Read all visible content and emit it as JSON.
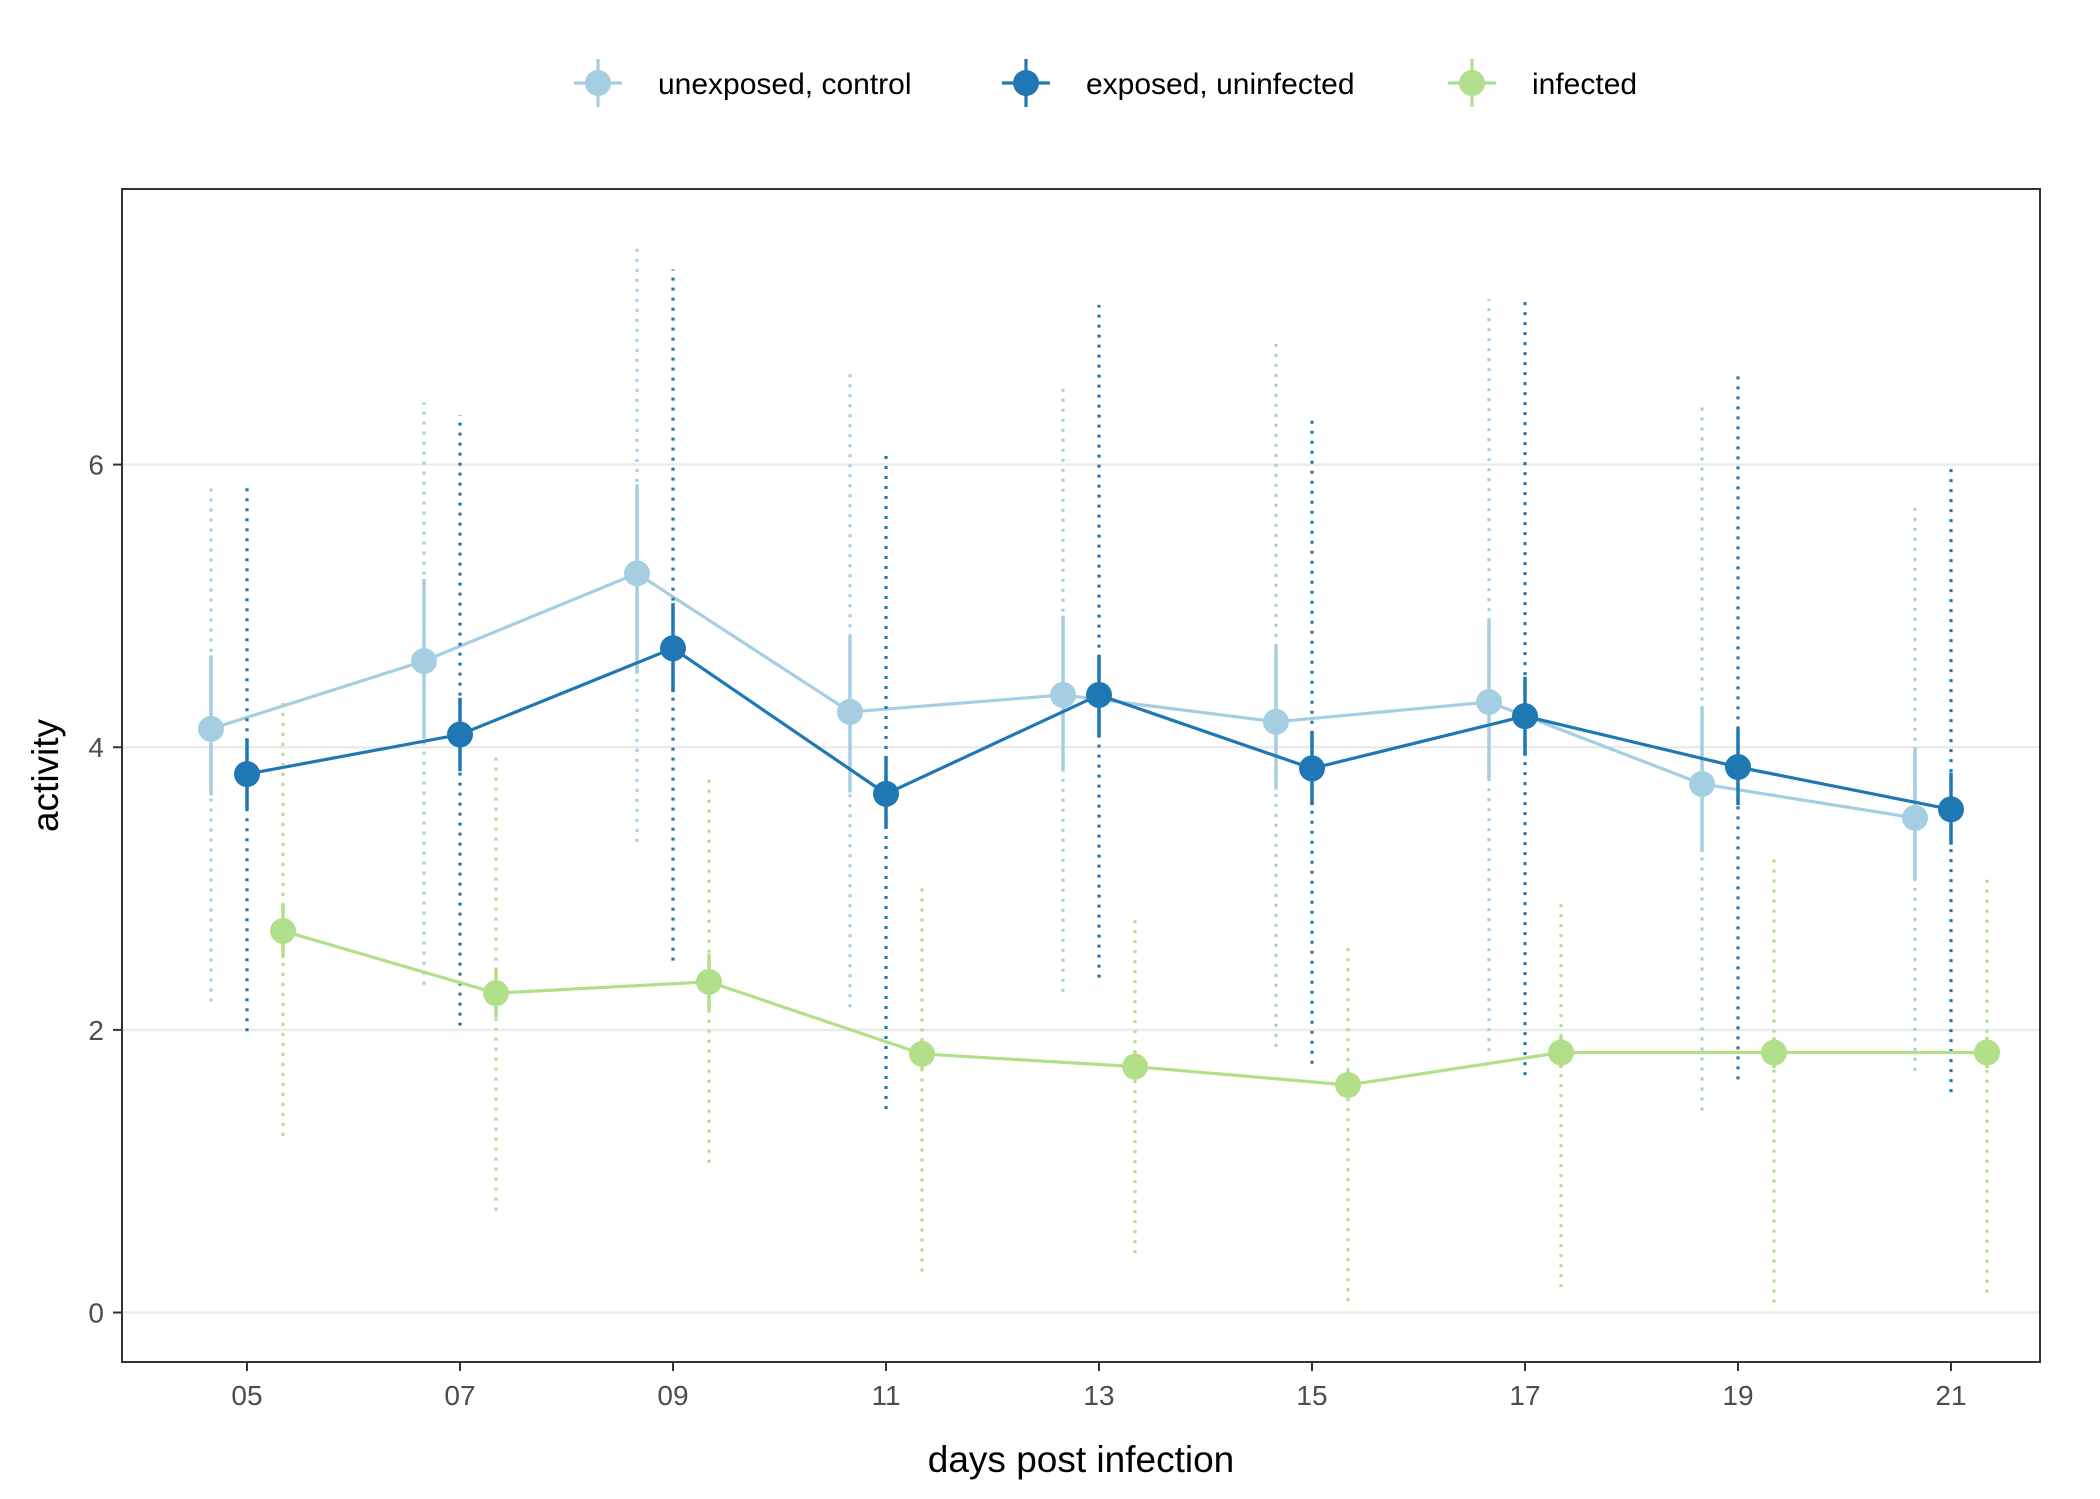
{
  "chart_data": {
    "type": "line",
    "xlabel": "days post infection",
    "ylabel": "activity",
    "categories": [
      "05",
      "07",
      "09",
      "11",
      "13",
      "15",
      "17",
      "19",
      "21"
    ],
    "ylim": [
      -0.35,
      7.95
    ],
    "yticks": [
      0,
      2,
      4,
      6
    ],
    "grid": "horizontal",
    "legend_position": "top",
    "error_bars": "solid = inner interval, dotted = outer interval",
    "series": [
      {
        "name": "unexposed, control",
        "color": "#a6cee3",
        "values": [
          4.13,
          4.61,
          5.23,
          4.25,
          4.37,
          4.18,
          4.32,
          3.74,
          3.5
        ],
        "inner_low": [
          3.66,
          4.06,
          4.52,
          3.68,
          3.84,
          3.7,
          3.78,
          3.26,
          3.06
        ],
        "inner_high": [
          4.65,
          5.19,
          5.86,
          4.79,
          4.93,
          4.72,
          4.9,
          4.29,
          4.0
        ],
        "outer_low": [
          2.2,
          2.32,
          3.33,
          2.16,
          2.27,
          1.88,
          1.85,
          1.43,
          1.71
        ],
        "outer_high": [
          5.85,
          6.44,
          7.54,
          6.66,
          6.58,
          6.87,
          7.17,
          6.44,
          5.7
        ]
      },
      {
        "name": "exposed, uninfected",
        "color": "#1f78b4",
        "values": [
          3.81,
          4.09,
          4.7,
          3.67,
          4.37,
          3.85,
          4.22,
          3.86,
          3.56
        ],
        "inner_low": [
          3.56,
          3.83,
          4.39,
          3.43,
          4.07,
          3.59,
          3.94,
          3.59,
          3.31
        ],
        "inner_high": [
          4.06,
          4.35,
          5.02,
          3.93,
          4.65,
          4.11,
          4.5,
          4.13,
          3.82
        ],
        "outer_low": [
          1.99,
          2.03,
          2.49,
          1.44,
          2.37,
          1.76,
          1.68,
          1.65,
          1.56
        ],
        "outer_high": [
          5.84,
          6.35,
          7.38,
          6.11,
          7.13,
          6.31,
          7.15,
          6.65,
          6.01
        ]
      },
      {
        "name": "infected",
        "color": "#b2df8a",
        "values": [
          2.7,
          2.26,
          2.34,
          1.83,
          1.74,
          1.61,
          1.84,
          1.84,
          1.84
        ],
        "inner_low": [
          2.51,
          2.09,
          2.14,
          1.72,
          1.64,
          1.52,
          1.73,
          1.73,
          1.73
        ],
        "inner_high": [
          2.89,
          2.43,
          2.54,
          1.94,
          1.84,
          1.71,
          1.95,
          1.95,
          1.95
        ],
        "outer_low": [
          1.25,
          0.72,
          1.06,
          0.29,
          0.42,
          0.08,
          0.18,
          0.07,
          0.14
        ],
        "outer_high": [
          4.34,
          3.95,
          3.77,
          3.02,
          2.81,
          2.58,
          2.91,
          3.24,
          3.07
        ]
      }
    ]
  }
}
